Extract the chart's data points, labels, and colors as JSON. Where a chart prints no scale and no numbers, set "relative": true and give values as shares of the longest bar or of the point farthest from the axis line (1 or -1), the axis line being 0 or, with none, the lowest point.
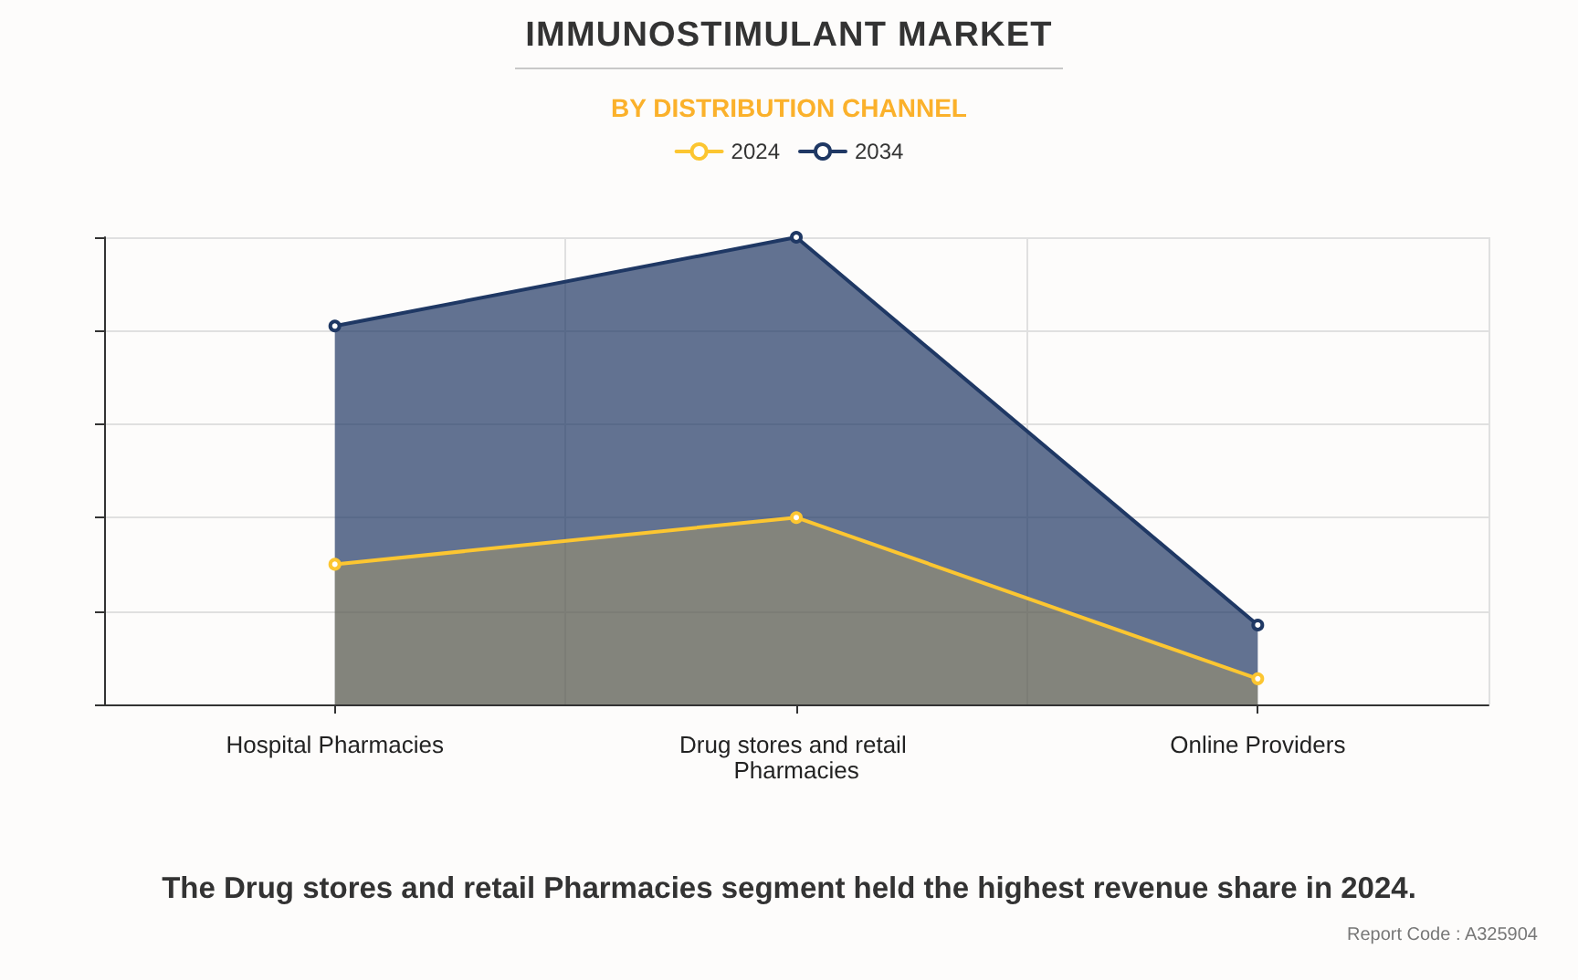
{
  "chart_data": {
    "type": "area",
    "title": "IMMUNOSTIMULANT MARKET",
    "subtitle": "BY DISTRIBUTION CHANNEL",
    "categories": [
      "Hospital Pharmacies",
      "Drug stores and retail Pharmacies",
      "Online Providers"
    ],
    "series": [
      {
        "name": "2024",
        "color": "#fcc631",
        "values": [
          0.3,
          0.4,
          0.055
        ]
      },
      {
        "name": "2034",
        "color": "#1f3864",
        "values": [
          0.81,
          1,
          0.17
        ]
      }
    ],
    "relative": true,
    "grid": true,
    "legend": "top",
    "marker": "circle",
    "line_style": "solid",
    "annotations": [
      "The Drug stores and retail Pharmacies segment held the highest revenue share in 2024.",
      "Report Code : A325904"
    ]
  }
}
